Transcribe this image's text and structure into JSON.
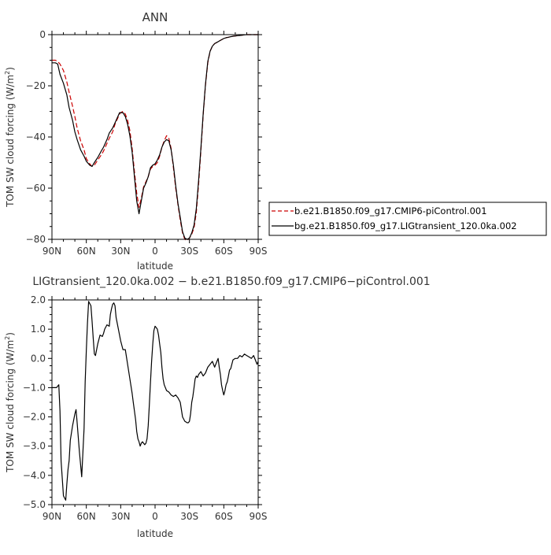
{
  "colors": {
    "ctrl": "#cc0000",
    "lig": "#000000",
    "axis": "#000000"
  },
  "chart_data": [
    {
      "type": "line",
      "title": "ANN",
      "xlabel": "latitude",
      "ylabel_main": "TOM SW cloud forcing (W/m",
      "ylabel_sup": "2",
      "ylabel_tail": ")",
      "xlim": [
        90,
        -90
      ],
      "ylim": [
        -80,
        0
      ],
      "xticks": [
        {
          "value": 90,
          "label": "90N"
        },
        {
          "value": 60,
          "label": "60N"
        },
        {
          "value": 30,
          "label": "30N"
        },
        {
          "value": 0,
          "label": "0"
        },
        {
          "value": -30,
          "label": "30S"
        },
        {
          "value": -60,
          "label": "60S"
        },
        {
          "value": -90,
          "label": "90S"
        }
      ],
      "yticks": [
        {
          "value": 0,
          "label": "0"
        },
        {
          "value": -20,
          "label": "−20"
        },
        {
          "value": -40,
          "label": "−40"
        },
        {
          "value": -60,
          "label": "−60"
        },
        {
          "value": -80,
          "label": "−80"
        }
      ],
      "legend": "right",
      "series": [
        {
          "name": "b.e21.B1850.f09_g17.CMIP6-piControl.001",
          "style": "dashed",
          "x": [
            90,
            87,
            85,
            83,
            80,
            77,
            75,
            72,
            70,
            68,
            65,
            62,
            60,
            57,
            55,
            53,
            50,
            47,
            45,
            42,
            40,
            37,
            35,
            33,
            31,
            30,
            28,
            26,
            24,
            22,
            20,
            18,
            16,
            14,
            12,
            10,
            8,
            6,
            4,
            2,
            0,
            -2,
            -4,
            -6,
            -8,
            -10,
            -12,
            -14,
            -16,
            -18,
            -20,
            -22,
            -24,
            -26,
            -28,
            -30,
            -32,
            -34,
            -36,
            -38,
            -40,
            -42,
            -44,
            -46,
            -48,
            -50,
            -52,
            -54,
            -56,
            -58,
            -60,
            -62,
            -64,
            -66,
            -68,
            -70,
            -72,
            -74,
            -76,
            -78,
            -80,
            -82,
            -84,
            -86,
            -88,
            -90
          ],
          "values": [
            -10,
            -10,
            -10.5,
            -11.5,
            -14,
            -18.5,
            -22.5,
            -28,
            -32,
            -36.5,
            -41.5,
            -45,
            -48.5,
            -50.5,
            -51.5,
            -51,
            -49,
            -47,
            -45.5,
            -42.5,
            -40.5,
            -38,
            -35,
            -33,
            -31,
            -30.5,
            -30,
            -31,
            -33.5,
            -37.5,
            -44.5,
            -53.5,
            -62,
            -67.5,
            -64,
            -59.5,
            -57.5,
            -55.5,
            -52.5,
            -51.5,
            -51,
            -50,
            -47.5,
            -44,
            -41.5,
            -39.5,
            -40.5,
            -44.5,
            -52,
            -60,
            -66.5,
            -72.5,
            -77.5,
            -80,
            -80.5,
            -79.5,
            -78,
            -75.5,
            -69.5,
            -58.5,
            -45.5,
            -31.5,
            -20,
            -11,
            -6.5,
            -4.5,
            -3.5,
            -3,
            -2.5,
            -2,
            -1.5,
            -1.2,
            -1,
            -0.8,
            -0.6,
            -0.5,
            -0.4,
            -0.3,
            -0.2,
            -0.1,
            0,
            0,
            0,
            0,
            0,
            0
          ]
        },
        {
          "name": "bg.e21.B1850.f09_g17.LIGtransient_120.0ka.002",
          "style": "solid",
          "x": [
            90,
            87,
            85,
            83,
            80,
            77,
            75,
            72,
            70,
            68,
            65,
            62,
            60,
            57,
            55,
            53,
            50,
            47,
            45,
            42,
            40,
            37,
            35,
            33,
            31,
            30,
            28,
            26,
            24,
            22,
            20,
            18,
            16,
            14,
            12,
            10,
            8,
            6,
            4,
            2,
            0,
            -2,
            -4,
            -6,
            -8,
            -10,
            -12,
            -14,
            -16,
            -18,
            -20,
            -22,
            -24,
            -26,
            -28,
            -30,
            -32,
            -34,
            -36,
            -38,
            -40,
            -42,
            -44,
            -46,
            -48,
            -50,
            -52,
            -54,
            -56,
            -58,
            -60,
            -62,
            -64,
            -66,
            -68,
            -70,
            -72,
            -74,
            -76,
            -78,
            -80,
            -82,
            -84,
            -86,
            -88,
            -90
          ],
          "values": [
            -11,
            -11,
            -11.5,
            -15.5,
            -19,
            -23.5,
            -28.5,
            -33.5,
            -38,
            -41,
            -45,
            -47.5,
            -49.5,
            -51,
            -51.5,
            -50,
            -48,
            -45.5,
            -44,
            -41,
            -38.5,
            -36.5,
            -34.5,
            -32.5,
            -30.5,
            -30.5,
            -30.5,
            -32,
            -35,
            -39.5,
            -46,
            -55.5,
            -65,
            -70,
            -65,
            -60,
            -58,
            -55.5,
            -52,
            -51,
            -50.5,
            -49,
            -47,
            -44,
            -42,
            -41,
            -41.5,
            -45,
            -51,
            -59,
            -66,
            -71.5,
            -77,
            -79.5,
            -80,
            -79.5,
            -77.5,
            -74.5,
            -68,
            -57,
            -44.5,
            -31,
            -19.5,
            -10.5,
            -6.5,
            -4.5,
            -3.5,
            -3,
            -2.5,
            -2,
            -1.5,
            -1.2,
            -1,
            -0.8,
            -0.6,
            -0.5,
            -0.4,
            -0.3,
            -0.2,
            -0.1,
            0,
            0,
            0,
            0,
            0,
            0
          ]
        }
      ]
    },
    {
      "type": "line",
      "title": "LIGtransient_120.0ka.002 − b.e21.B1850.f09_g17.CMIP6−piControl.001",
      "xlabel": "latitude",
      "ylabel_main": "TOM SW cloud forcing (W/m",
      "ylabel_sup": "2",
      "ylabel_tail": ")",
      "xlim": [
        90,
        -90
      ],
      "ylim": [
        -5,
        2
      ],
      "xticks": [
        {
          "value": 90,
          "label": "90N"
        },
        {
          "value": 60,
          "label": "60N"
        },
        {
          "value": 30,
          "label": "30N"
        },
        {
          "value": 0,
          "label": "0"
        },
        {
          "value": -30,
          "label": "30S"
        },
        {
          "value": -60,
          "label": "60S"
        },
        {
          "value": -90,
          "label": "90S"
        }
      ],
      "yticks": [
        {
          "value": 2,
          "label": "2.0"
        },
        {
          "value": 1,
          "label": "1.0"
        },
        {
          "value": 0,
          "label": "0.0"
        },
        {
          "value": -1,
          "label": "−1.0"
        },
        {
          "value": -2,
          "label": "−2.0"
        },
        {
          "value": -3,
          "label": "−3.0"
        },
        {
          "value": -4,
          "label": "−4.0"
        },
        {
          "value": -5,
          "label": "−5.0"
        }
      ],
      "series": [
        {
          "name": "",
          "style": "solid",
          "x": [
            90,
            86,
            84,
            83,
            82,
            80,
            78,
            77,
            76,
            75,
            74,
            72,
            70,
            69,
            68,
            66,
            64,
            62,
            61,
            60,
            59,
            58,
            56,
            55,
            54,
            53,
            52,
            50,
            48,
            46,
            45,
            44,
            42,
            40,
            39,
            38,
            37,
            36,
            35,
            34,
            32,
            30,
            28,
            26,
            24,
            22,
            20,
            19,
            18,
            17,
            16,
            15,
            14,
            13,
            12,
            11,
            10,
            9,
            8,
            7,
            6,
            5,
            4,
            3,
            2,
            1,
            0,
            -1,
            -2,
            -3,
            -4,
            -5,
            -6,
            -7,
            -8,
            -10,
            -12,
            -14,
            -16,
            -18,
            -20,
            -22,
            -24,
            -26,
            -28,
            -29,
            -30,
            -31,
            -32,
            -33,
            -34,
            -35,
            -36,
            -37,
            -38,
            -40,
            -42,
            -44,
            -46,
            -48,
            -50,
            -52,
            -54,
            -55,
            -56,
            -57,
            -58,
            -59,
            -60,
            -61,
            -62,
            -63,
            -64,
            -65,
            -66,
            -68,
            -70,
            -72,
            -74,
            -76,
            -78,
            -80,
            -82,
            -84,
            -86,
            -88,
            -89,
            -90
          ],
          "values": [
            -1,
            -1,
            -0.9,
            -1.8,
            -3.5,
            -4.7,
            -4.85,
            -4.3,
            -3.8,
            -3.5,
            -2.8,
            -2.3,
            -1.9,
            -1.75,
            -2.2,
            -3.2,
            -4.05,
            -2.4,
            -0.8,
            0.3,
            1.2,
            1.95,
            1.8,
            1.3,
            0.7,
            0.15,
            0.1,
            0.5,
            0.8,
            0.75,
            0.85,
            1.0,
            1.15,
            1.1,
            1.5,
            1.7,
            1.85,
            1.9,
            1.8,
            1.4,
            1.0,
            0.6,
            0.3,
            0.3,
            -0.2,
            -0.7,
            -1.2,
            -1.5,
            -1.8,
            -2.1,
            -2.5,
            -2.75,
            -2.85,
            -3.0,
            -2.9,
            -2.85,
            -2.9,
            -2.95,
            -2.9,
            -2.75,
            -2.3,
            -1.6,
            -0.8,
            -0.1,
            0.5,
            0.95,
            1.1,
            1.05,
            1.0,
            0.8,
            0.5,
            0.2,
            -0.3,
            -0.7,
            -0.9,
            -1.1,
            -1.15,
            -1.25,
            -1.3,
            -1.25,
            -1.35,
            -1.5,
            -2.0,
            -2.15,
            -2.2,
            -2.2,
            -2.15,
            -1.9,
            -1.5,
            -1.3,
            -1.0,
            -0.7,
            -0.6,
            -0.65,
            -0.55,
            -0.45,
            -0.6,
            -0.5,
            -0.3,
            -0.2,
            -0.1,
            -0.3,
            -0.1,
            0.0,
            -0.3,
            -0.55,
            -0.9,
            -1.1,
            -1.25,
            -1.1,
            -0.9,
            -0.8,
            -0.6,
            -0.4,
            -0.35,
            -0.05,
            0.0,
            0.0,
            0.1,
            0.05,
            0.15,
            0.1,
            0.05,
            0.0,
            0.1,
            -0.1,
            -0.2,
            -0.1
          ]
        }
      ]
    }
  ]
}
